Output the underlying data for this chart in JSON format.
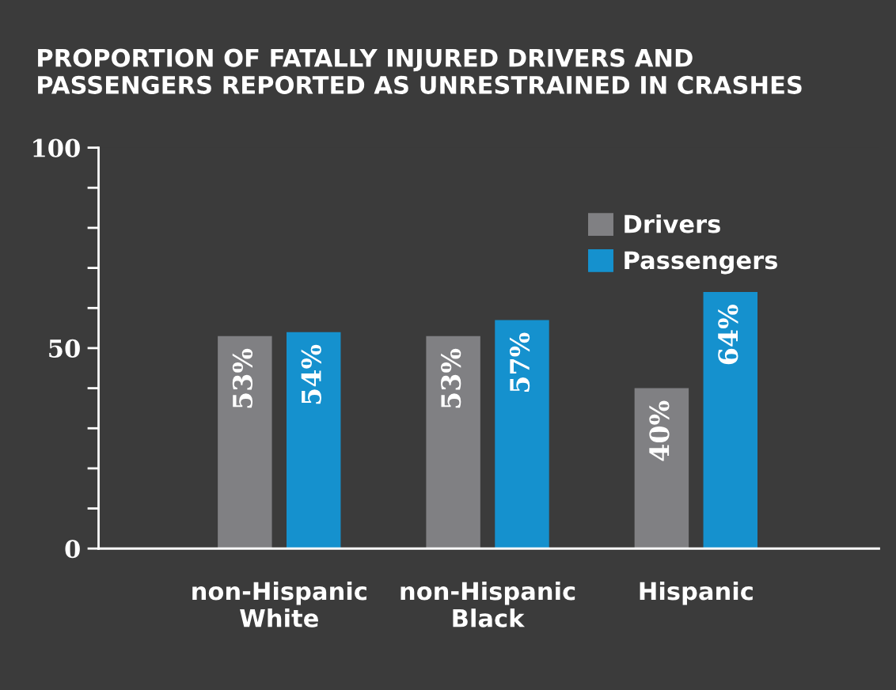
{
  "chart_data": {
    "type": "bar",
    "title": "PROPORTION OF FATALLY INJURED DRIVERS AND\nPASSENGERS REPORTED AS UNRESTRAINED IN CRASHES",
    "categories": [
      "non-Hispanic\nWhite",
      "non-Hispanic\nBlack",
      "Hispanic"
    ],
    "series": [
      {
        "name": "Drivers",
        "color": "#808083",
        "values": [
          53,
          53,
          40
        ],
        "value_labels": [
          "53%",
          "53%",
          "40%"
        ]
      },
      {
        "name": "Passengers",
        "color": "#1591ce",
        "values": [
          54,
          57,
          64
        ],
        "value_labels": [
          "54%",
          "57%",
          "64%"
        ]
      }
    ],
    "ylim": [
      0,
      100
    ],
    "yticks": [
      0,
      {
        "value": 10,
        "label": null
      },
      {
        "value": 20,
        "label": null
      },
      {
        "value": 30,
        "label": null
      },
      {
        "value": 40,
        "label": null
      },
      50,
      {
        "value": 60,
        "label": null
      },
      {
        "value": 70,
        "label": null
      },
      {
        "value": 80,
        "label": null
      },
      {
        "value": 90,
        "label": null
      },
      100
    ],
    "grid": false,
    "legend": "top right"
  }
}
